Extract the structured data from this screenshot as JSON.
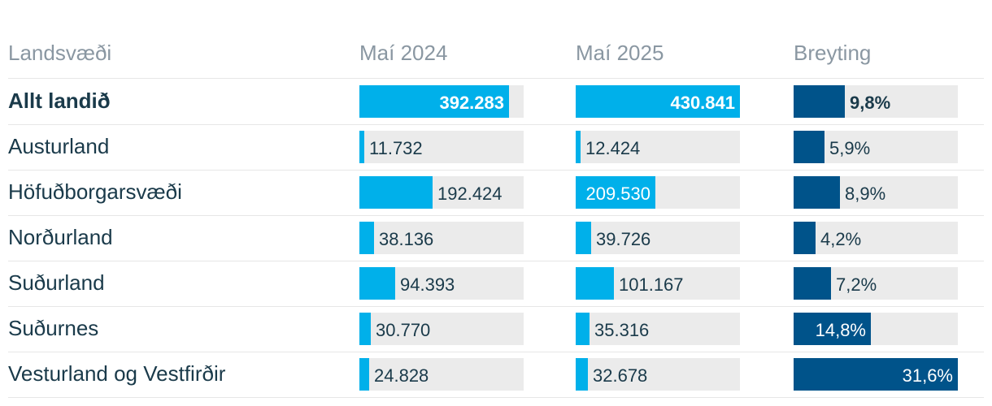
{
  "header": {
    "region": "Landsvæði",
    "col1": "Maí 2024",
    "col2": "Maí 2025",
    "col3": "Breyting"
  },
  "chart_data": {
    "type": "table",
    "columns": [
      "Landsvæði",
      "Maí 2024",
      "Maí 2025",
      "Breyting"
    ],
    "rows": [
      {
        "region": "Allt landið",
        "v2024": 392283,
        "v2024_label": "392.283",
        "v2025": 430841,
        "v2025_label": "430.841",
        "change": 9.8,
        "change_label": "9,8%",
        "bold": true
      },
      {
        "region": "Austurland",
        "v2024": 11732,
        "v2024_label": "11.732",
        "v2025": 12424,
        "v2025_label": "12.424",
        "change": 5.9,
        "change_label": "5,9%",
        "bold": false
      },
      {
        "region": "Höfuðborgarsvæði",
        "v2024": 192424,
        "v2024_label": "192.424",
        "v2025": 209530,
        "v2025_label": "209.530",
        "change": 8.9,
        "change_label": "8,9%",
        "bold": false
      },
      {
        "region": "Norðurland",
        "v2024": 38136,
        "v2024_label": "38.136",
        "v2025": 39726,
        "v2025_label": "39.726",
        "change": 4.2,
        "change_label": "4,2%",
        "bold": false
      },
      {
        "region": "Suðurland",
        "v2024": 94393,
        "v2024_label": "94.393",
        "v2025": 101167,
        "v2025_label": "101.167",
        "change": 7.2,
        "change_label": "7,2%",
        "bold": false
      },
      {
        "region": "Suðurnes",
        "v2024": 30770,
        "v2024_label": "30.770",
        "v2025": 35316,
        "v2025_label": "35.316",
        "change": 14.8,
        "change_label": "14,8%",
        "bold": false
      },
      {
        "region": "Vesturland og Vestfirðir",
        "v2024": 24828,
        "v2024_label": "24.828",
        "v2025": 32678,
        "v2025_label": "32.678",
        "change": 31.6,
        "change_label": "31,6%",
        "bold": false
      }
    ],
    "colors": {
      "count_bar": "#00b0ea",
      "change_bar": "#00538a",
      "track": "#ebebeb",
      "text": "#1a3a4a",
      "header_text": "#8a97a2"
    }
  }
}
